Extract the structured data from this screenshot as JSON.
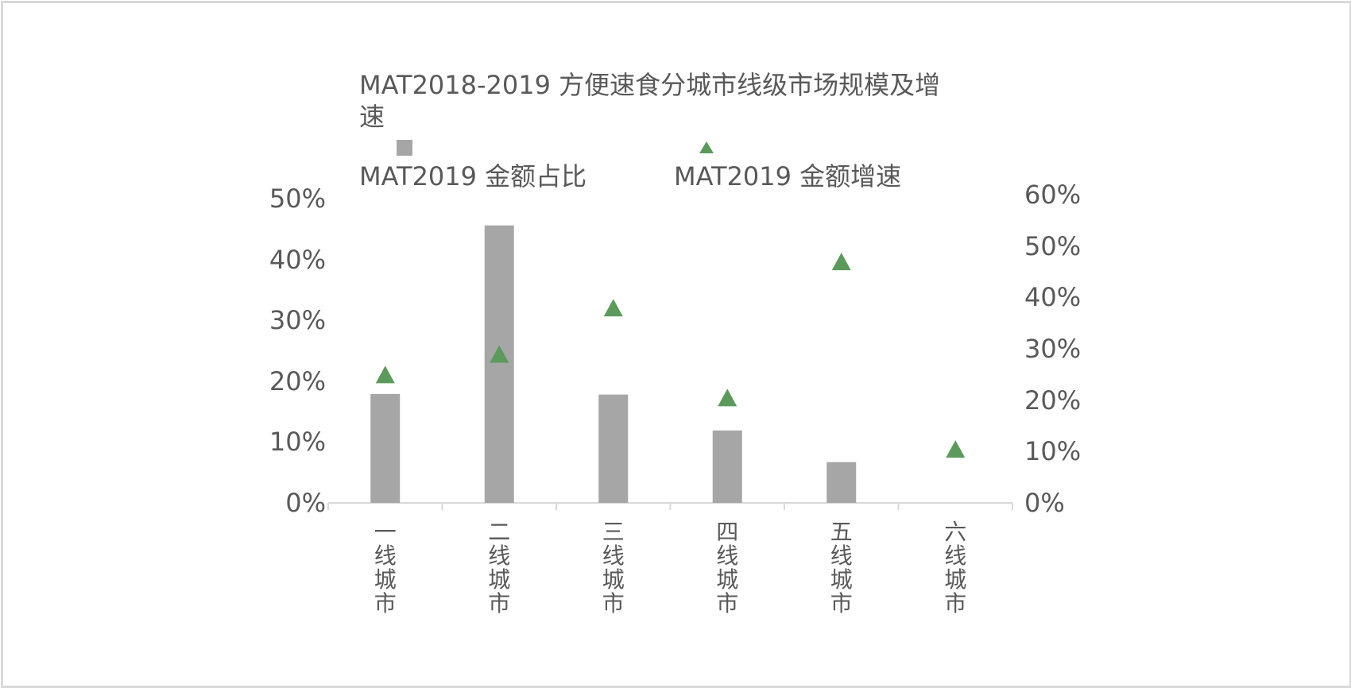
{
  "chart_data": {
    "type": "bar",
    "title": "MAT2018-2019 方便速食分城市线级市场规模及增速",
    "categories": [
      "一线城市",
      "二线城市",
      "三线城市",
      "四线城市",
      "五线城市",
      "六线城市"
    ],
    "series": [
      {
        "name": "MAT2019 金额占比",
        "type": "bar",
        "axis": "left",
        "values": [
          17.9,
          45.6,
          17.8,
          11.9,
          6.7,
          0
        ],
        "color": "#a6a6a6"
      },
      {
        "name": "MAT2019 金额增速",
        "type": "scatter",
        "axis": "right",
        "marker": "triangle",
        "values": [
          25.0,
          29.0,
          38.0,
          20.5,
          47.0,
          10.5
        ],
        "color": "#5b9a5b"
      }
    ],
    "y_left": {
      "ylim": [
        0,
        50
      ],
      "ticks": [
        "0%",
        "10%",
        "20%",
        "30%",
        "40%",
        "50%"
      ]
    },
    "y_right": {
      "ylim": [
        0,
        60
      ],
      "ticks": [
        "0%",
        "10%",
        "20%",
        "30%",
        "40%",
        "50%",
        "60%"
      ]
    },
    "legend": "top",
    "grid": false
  }
}
